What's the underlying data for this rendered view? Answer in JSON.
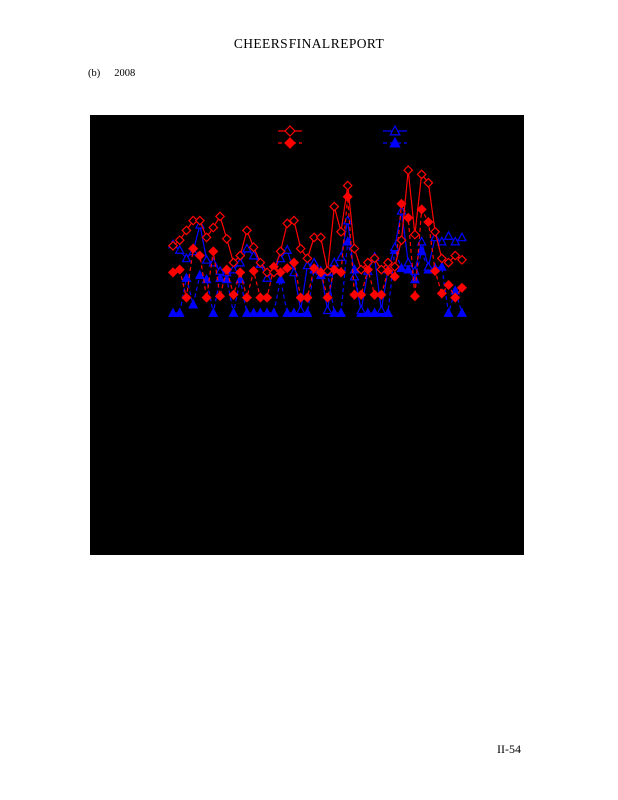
{
  "page": {
    "title": "CHEERS FINAL REPORT",
    "subfigure_label": "(b)",
    "subfigure_year": "2008",
    "page_number": "II-54"
  },
  "chart_data": {
    "type": "line",
    "title": "",
    "xlabel": "",
    "ylabel": "",
    "x": [
      1,
      2,
      3,
      4,
      5,
      6,
      7,
      8,
      9,
      10,
      11,
      12,
      13,
      14,
      15,
      16,
      17,
      18,
      19,
      20,
      21,
      22,
      23,
      24,
      25,
      26,
      27,
      28,
      29,
      30,
      31,
      32,
      33,
      34,
      35,
      36,
      37,
      38,
      39,
      40,
      41,
      42,
      43,
      44
    ],
    "xlim": [
      0,
      45
    ],
    "ylim": [
      0,
      11
    ],
    "background": "#000000",
    "grid": false,
    "legend": {
      "position": "top-center",
      "text_visible": false
    },
    "colors": {
      "red": "#ff0000",
      "blue": "#0000ff"
    },
    "series": [
      {
        "name": "red-open-diamond-solid",
        "color": "#ff0000",
        "line": "solid",
        "marker": "diamond-open",
        "values": [
          4.8,
          5.2,
          5.9,
          6.6,
          6.6,
          5.4,
          6.1,
          6.9,
          5.3,
          3.6,
          4.1,
          5.9,
          4.7,
          3.6,
          2.9,
          2.9,
          4.4,
          6.4,
          6.6,
          4.6,
          3.9,
          5.4,
          5.4,
          3.0,
          7.6,
          5.8,
          9.1,
          4.6,
          3.1,
          3.6,
          3.9,
          3.1,
          3.6,
          3.3,
          5.2,
          10.2,
          5.6,
          9.9,
          9.3,
          5.8,
          3.9,
          3.6,
          4.1,
          3.8
        ]
      },
      {
        "name": "red-filled-diamond-dashed",
        "color": "#ff0000",
        "line": "dashed",
        "marker": "diamond-filled",
        "values": [
          2.9,
          3.1,
          1.1,
          4.6,
          4.1,
          1.1,
          4.4,
          1.2,
          3.1,
          1.3,
          2.9,
          1.1,
          3.0,
          1.1,
          1.1,
          3.3,
          2.9,
          3.2,
          3.6,
          1.1,
          1.1,
          3.2,
          2.9,
          1.1,
          3.1,
          2.9,
          8.3,
          1.3,
          1.3,
          3.1,
          1.3,
          1.3,
          3.0,
          2.6,
          7.8,
          6.8,
          1.2,
          7.4,
          6.5,
          3.0,
          1.4,
          2.0,
          1.1,
          1.8
        ]
      },
      {
        "name": "blue-open-triangle-solid",
        "color": "#0000ff",
        "line": "solid",
        "marker": "triangle-open",
        "values": [
          4.9,
          4.5,
          3.9,
          4.4,
          6.3,
          3.8,
          3.6,
          3.0,
          2.9,
          3.1,
          3.6,
          4.6,
          4.1,
          3.5,
          2.5,
          3.0,
          3.9,
          4.5,
          2.9,
          0.2,
          3.4,
          3.6,
          3.0,
          0.2,
          3.6,
          4.0,
          6.6,
          2.6,
          0.2,
          3.0,
          4.0,
          0.2,
          3.1,
          4.7,
          7.3,
          3.6,
          3.0,
          5.1,
          3.3,
          5.4,
          5.1,
          5.5,
          5.1,
          5.4
        ]
      },
      {
        "name": "blue-filled-triangle-dashed",
        "color": "#0000ff",
        "line": "dashed",
        "marker": "triangle-filled",
        "values": [
          0,
          0,
          2.5,
          0.6,
          2.7,
          2.4,
          0,
          2.5,
          2.4,
          0,
          2.4,
          0,
          0,
          0,
          0,
          0,
          2.4,
          0,
          0,
          0,
          0,
          3.1,
          2.7,
          2.9,
          0,
          0,
          5.1,
          3.1,
          0,
          0,
          0,
          0,
          0,
          4.5,
          3.2,
          3.1,
          2.4,
          4.4,
          3.1,
          3.2,
          3.3,
          0,
          1.6,
          0
        ]
      }
    ]
  }
}
